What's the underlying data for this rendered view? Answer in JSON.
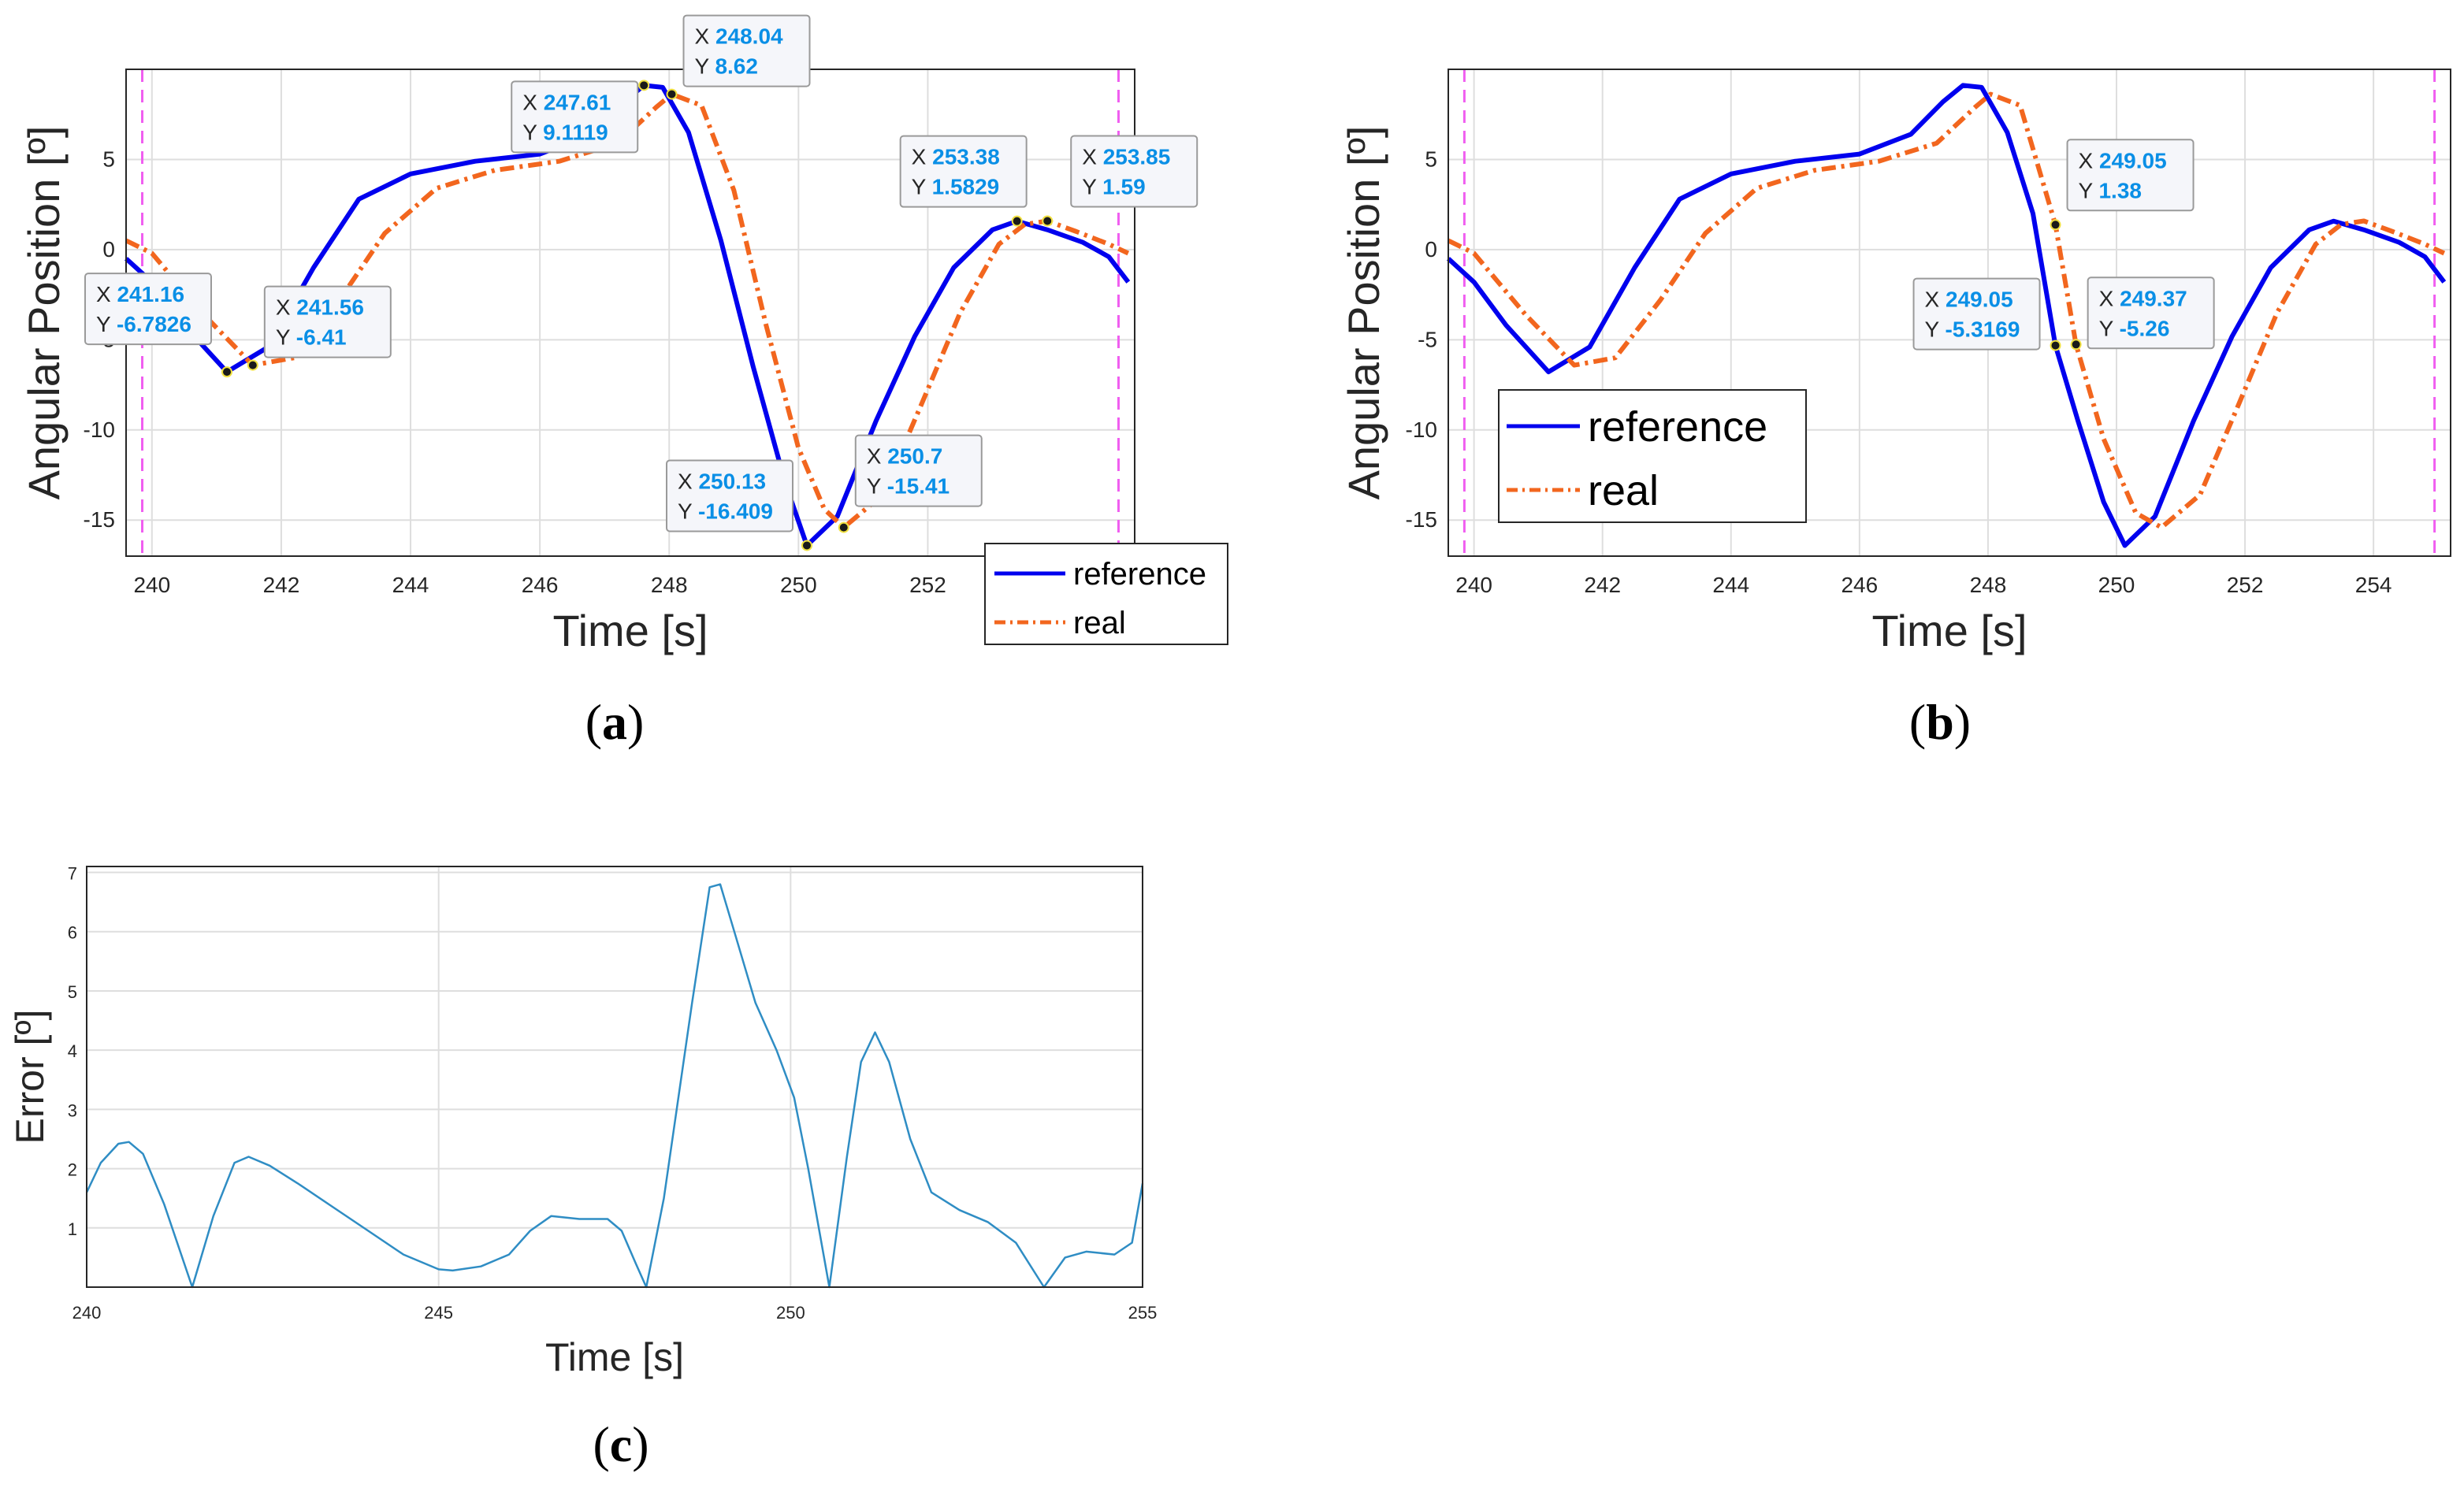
{
  "chart_data": [
    {
      "id": "a",
      "type": "line",
      "caption": "a",
      "xlabel": "Time [s]",
      "ylabel": "Angular Position [º]",
      "xlim": [
        239.6,
        255.2
      ],
      "ylim": [
        -17,
        10
      ],
      "xticks": [
        240,
        242,
        244,
        246,
        248,
        250,
        252
      ],
      "yticks": [
        -15,
        -10,
        -5,
        0,
        5
      ],
      "vlines": [
        239.85,
        254.95
      ],
      "legend_position": "bottom-right",
      "legend": [
        "reference",
        "real"
      ],
      "series": [
        {
          "name": "reference",
          "color": "#0000ee",
          "style": "solid",
          "points": [
            [
              239.6,
              -0.5
            ],
            [
              240,
              -1.8
            ],
            [
              240.5,
              -4.2
            ],
            [
              241.16,
              -6.78
            ],
            [
              241.8,
              -5.4
            ],
            [
              242.5,
              -1.0
            ],
            [
              243.2,
              2.8
            ],
            [
              244,
              4.2
            ],
            [
              245,
              4.9
            ],
            [
              246,
              5.3
            ],
            [
              246.8,
              6.4
            ],
            [
              247.3,
              8.2
            ],
            [
              247.61,
              9.11
            ],
            [
              247.9,
              9.0
            ],
            [
              248.3,
              6.5
            ],
            [
              248.8,
              0.5
            ],
            [
              249.3,
              -6.5
            ],
            [
              249.8,
              -13.0
            ],
            [
              250.13,
              -16.41
            ],
            [
              250.6,
              -14.8
            ],
            [
              251.2,
              -9.5
            ],
            [
              251.8,
              -4.8
            ],
            [
              252.4,
              -1.0
            ],
            [
              253.0,
              1.1
            ],
            [
              253.38,
              1.58
            ],
            [
              253.85,
              1.1
            ],
            [
              254.4,
              0.4
            ],
            [
              254.8,
              -0.4
            ],
            [
              255.1,
              -1.8
            ]
          ]
        },
        {
          "name": "real",
          "color": "#f2661e",
          "style": "dashdot",
          "points": [
            [
              239.6,
              0.5
            ],
            [
              240,
              -0.2
            ],
            [
              240.8,
              -3.6
            ],
            [
              241.56,
              -6.41
            ],
            [
              242.2,
              -6.0
            ],
            [
              242.9,
              -2.8
            ],
            [
              243.6,
              0.9
            ],
            [
              244.4,
              3.4
            ],
            [
              245.3,
              4.4
            ],
            [
              246.3,
              4.9
            ],
            [
              247.2,
              5.9
            ],
            [
              247.8,
              7.9
            ],
            [
              248.04,
              8.62
            ],
            [
              248.5,
              8.0
            ],
            [
              249.0,
              3.3
            ],
            [
              249.5,
              -4.2
            ],
            [
              250.0,
              -11.0
            ],
            [
              250.4,
              -14.4
            ],
            [
              250.7,
              -15.41
            ],
            [
              251.3,
              -13.6
            ],
            [
              251.9,
              -8.6
            ],
            [
              252.5,
              -3.5
            ],
            [
              253.1,
              0.3
            ],
            [
              253.5,
              1.4
            ],
            [
              253.85,
              1.59
            ],
            [
              254.3,
              1.0
            ],
            [
              254.8,
              0.3
            ],
            [
              255.1,
              -0.2
            ]
          ]
        }
      ],
      "datatips": [
        {
          "x_label": "241.16",
          "y_label": "-6.7826",
          "x": 241.16,
          "y": -6.7826
        },
        {
          "x_label": "241.56",
          "y_label": "-6.41",
          "x": 241.56,
          "y": -6.41
        },
        {
          "x_label": "247.61",
          "y_label": "9.1119",
          "x": 247.61,
          "y": 9.1119
        },
        {
          "x_label": "248.04",
          "y_label": "8.62",
          "x": 248.04,
          "y": 8.62
        },
        {
          "x_label": "250.13",
          "y_label": "-16.409",
          "x": 250.13,
          "y": -16.409
        },
        {
          "x_label": "250.7",
          "y_label": "-15.41",
          "x": 250.7,
          "y": -15.41
        },
        {
          "x_label": "253.38",
          "y_label": "1.5829",
          "x": 253.38,
          "y": 1.5829
        },
        {
          "x_label": "253.85",
          "y_label": "1.59",
          "x": 253.85,
          "y": 1.59
        }
      ]
    },
    {
      "id": "b",
      "type": "line",
      "caption": "b",
      "xlabel": "Time [s]",
      "ylabel": "Angular Position [º]",
      "xlim": [
        239.6,
        255.2
      ],
      "ylim": [
        -17,
        10
      ],
      "xticks": [
        240,
        242,
        244,
        246,
        248,
        250,
        252,
        254
      ],
      "yticks": [
        -15,
        -10,
        -5,
        0,
        5
      ],
      "vlines": [
        239.85,
        254.95
      ],
      "legend_position": "bottom-left",
      "legend": [
        "reference",
        "real"
      ],
      "series": [
        {
          "name": "reference",
          "color": "#0000ee",
          "style": "solid",
          "points": [
            [
              239.6,
              -0.5
            ],
            [
              240,
              -1.8
            ],
            [
              240.5,
              -4.2
            ],
            [
              241.16,
              -6.78
            ],
            [
              241.8,
              -5.4
            ],
            [
              242.5,
              -1.0
            ],
            [
              243.2,
              2.8
            ],
            [
              244,
              4.2
            ],
            [
              245,
              4.9
            ],
            [
              246,
              5.3
            ],
            [
              246.8,
              6.4
            ],
            [
              247.3,
              8.2
            ],
            [
              247.61,
              9.11
            ],
            [
              247.9,
              9.0
            ],
            [
              248.3,
              6.5
            ],
            [
              248.7,
              2.0
            ],
            [
              249.05,
              -5.32
            ],
            [
              249.4,
              -9.5
            ],
            [
              249.8,
              -14.0
            ],
            [
              250.13,
              -16.41
            ],
            [
              250.6,
              -14.8
            ],
            [
              251.2,
              -9.5
            ],
            [
              251.8,
              -4.8
            ],
            [
              252.4,
              -1.0
            ],
            [
              253.0,
              1.1
            ],
            [
              253.38,
              1.58
            ],
            [
              253.85,
              1.1
            ],
            [
              254.4,
              0.4
            ],
            [
              254.8,
              -0.4
            ],
            [
              255.1,
              -1.8
            ]
          ]
        },
        {
          "name": "real",
          "color": "#f2661e",
          "style": "dashdot",
          "points": [
            [
              239.6,
              0.5
            ],
            [
              240,
              -0.2
            ],
            [
              240.8,
              -3.6
            ],
            [
              241.56,
              -6.41
            ],
            [
              242.2,
              -6.0
            ],
            [
              242.9,
              -2.8
            ],
            [
              243.6,
              0.9
            ],
            [
              244.4,
              3.4
            ],
            [
              245.3,
              4.4
            ],
            [
              246.3,
              4.9
            ],
            [
              247.2,
              5.9
            ],
            [
              247.8,
              7.9
            ],
            [
              248.04,
              8.62
            ],
            [
              248.5,
              8.0
            ],
            [
              249.05,
              1.38
            ],
            [
              249.37,
              -5.26
            ],
            [
              249.8,
              -10.5
            ],
            [
              250.3,
              -14.6
            ],
            [
              250.7,
              -15.41
            ],
            [
              251.3,
              -13.6
            ],
            [
              251.9,
              -8.6
            ],
            [
              252.5,
              -3.5
            ],
            [
              253.1,
              0.3
            ],
            [
              253.5,
              1.4
            ],
            [
              253.85,
              1.59
            ],
            [
              254.3,
              1.0
            ],
            [
              254.8,
              0.3
            ],
            [
              255.1,
              -0.2
            ]
          ]
        }
      ],
      "datatips": [
        {
          "x_label": "249.05",
          "y_label": "1.38",
          "x": 249.05,
          "y": 1.38
        },
        {
          "x_label": "249.05",
          "y_label": "-5.3169",
          "x": 249.05,
          "y": -5.3169
        },
        {
          "x_label": "249.37",
          "y_label": "-5.26",
          "x": 249.37,
          "y": -5.26
        }
      ]
    },
    {
      "id": "c",
      "type": "line",
      "caption": "c",
      "xlabel": "Time [s]",
      "ylabel": "Error [º]",
      "xlim": [
        240,
        255
      ],
      "ylim": [
        0,
        7.1
      ],
      "xticks": [
        240,
        245,
        250,
        255
      ],
      "yticks": [
        1,
        2,
        3,
        4,
        5,
        6,
        7
      ],
      "series": [
        {
          "name": "error",
          "color": "#2f8dc4",
          "style": "solid",
          "points": [
            [
              240,
              1.6
            ],
            [
              240.2,
              2.1
            ],
            [
              240.45,
              2.42
            ],
            [
              240.6,
              2.45
            ],
            [
              240.8,
              2.25
            ],
            [
              241.1,
              1.4
            ],
            [
              241.5,
              0.0
            ],
            [
              241.8,
              1.2
            ],
            [
              242.1,
              2.1
            ],
            [
              242.3,
              2.2
            ],
            [
              242.6,
              2.05
            ],
            [
              243,
              1.75
            ],
            [
              243.5,
              1.35
            ],
            [
              244,
              0.95
            ],
            [
              244.5,
              0.55
            ],
            [
              245,
              0.3
            ],
            [
              245.2,
              0.28
            ],
            [
              245.6,
              0.35
            ],
            [
              246,
              0.55
            ],
            [
              246.3,
              0.95
            ],
            [
              246.6,
              1.2
            ],
            [
              247,
              1.15
            ],
            [
              247.4,
              1.15
            ],
            [
              247.6,
              0.95
            ],
            [
              247.8,
              0.4
            ],
            [
              247.95,
              0.0
            ],
            [
              248.2,
              1.5
            ],
            [
              248.6,
              4.8
            ],
            [
              248.85,
              6.75
            ],
            [
              249.0,
              6.8
            ],
            [
              249.2,
              6.0
            ],
            [
              249.5,
              4.8
            ],
            [
              249.8,
              4.0
            ],
            [
              250.05,
              3.2
            ],
            [
              250.25,
              2.0
            ],
            [
              250.55,
              0.0
            ],
            [
              250.8,
              2.2
            ],
            [
              251.0,
              3.8
            ],
            [
              251.2,
              4.3
            ],
            [
              251.4,
              3.8
            ],
            [
              251.7,
              2.5
            ],
            [
              252,
              1.6
            ],
            [
              252.4,
              1.3
            ],
            [
              252.8,
              1.1
            ],
            [
              253.2,
              0.75
            ],
            [
              253.6,
              0.0
            ],
            [
              253.9,
              0.5
            ],
            [
              254.2,
              0.6
            ],
            [
              254.6,
              0.55
            ],
            [
              254.85,
              0.75
            ],
            [
              255,
              1.75
            ]
          ]
        }
      ]
    }
  ]
}
